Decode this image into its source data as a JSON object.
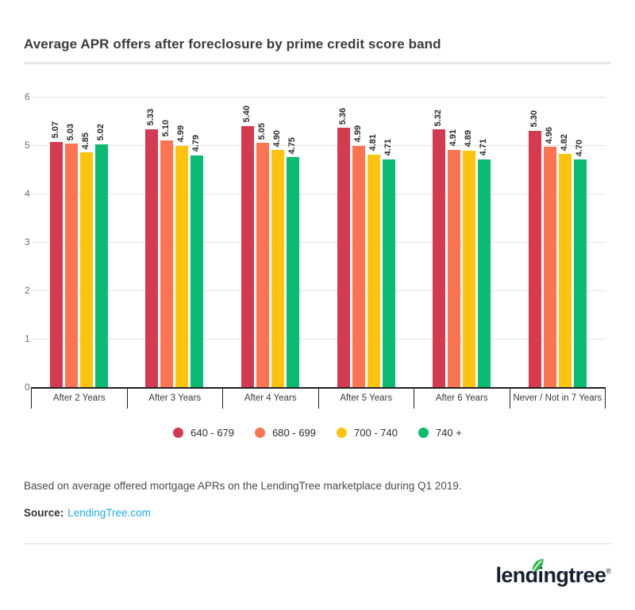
{
  "page": {
    "title": "Average APR offers after foreclosure by prime credit score band",
    "note": "Based on average offered mortgage APRs on the LendingTree marketplace during Q1 2019.",
    "source_label": "Source:",
    "source_link": "LendingTree.com",
    "logo_text": "lendingtree",
    "logo_trademark": "®"
  },
  "colors": {
    "accent_red": "#d63a51",
    "accent_orange": "#fd7452",
    "accent_yellow": "#fec40d",
    "accent_green": "#0bbb72",
    "link_blue": "#1fabe3",
    "axis_dark": "#212121",
    "gridline_gray": "#e4e4e4",
    "logo_navy": "#17202e",
    "logo_leaf_green": "#2eb24a"
  },
  "chart_data": {
    "type": "bar",
    "title": "Average APR offers after foreclosure by prime credit score band",
    "categories": [
      "After 2 Years",
      "After 3 Years",
      "After 4 Years",
      "After 5 Years",
      "After 6 Years",
      "Never / Not in 7 Years"
    ],
    "series": [
      {
        "name": "640 - 679",
        "color": "#d63a51",
        "values": [
          5.07,
          5.33,
          5.4,
          5.36,
          5.32,
          5.3
        ]
      },
      {
        "name": "680 - 699",
        "color": "#fd7452",
        "values": [
          5.03,
          5.1,
          5.05,
          4.99,
          4.91,
          4.96
        ]
      },
      {
        "name": "700 - 740",
        "color": "#fec40d",
        "values": [
          4.85,
          4.99,
          4.9,
          4.81,
          4.89,
          4.82
        ]
      },
      {
        "name": "740 +",
        "color": "#0bbb72",
        "values": [
          5.02,
          4.79,
          4.75,
          4.71,
          4.71,
          4.7
        ]
      }
    ],
    "xlabel": "",
    "ylabel": "",
    "ylim": [
      0,
      6
    ],
    "yticks": [
      0,
      1,
      2,
      3,
      4,
      5,
      6
    ],
    "grid": true,
    "legend_position": "bottom",
    "value_labels": "rotated-vertical-above-bars",
    "value_label_format": "0.00"
  }
}
